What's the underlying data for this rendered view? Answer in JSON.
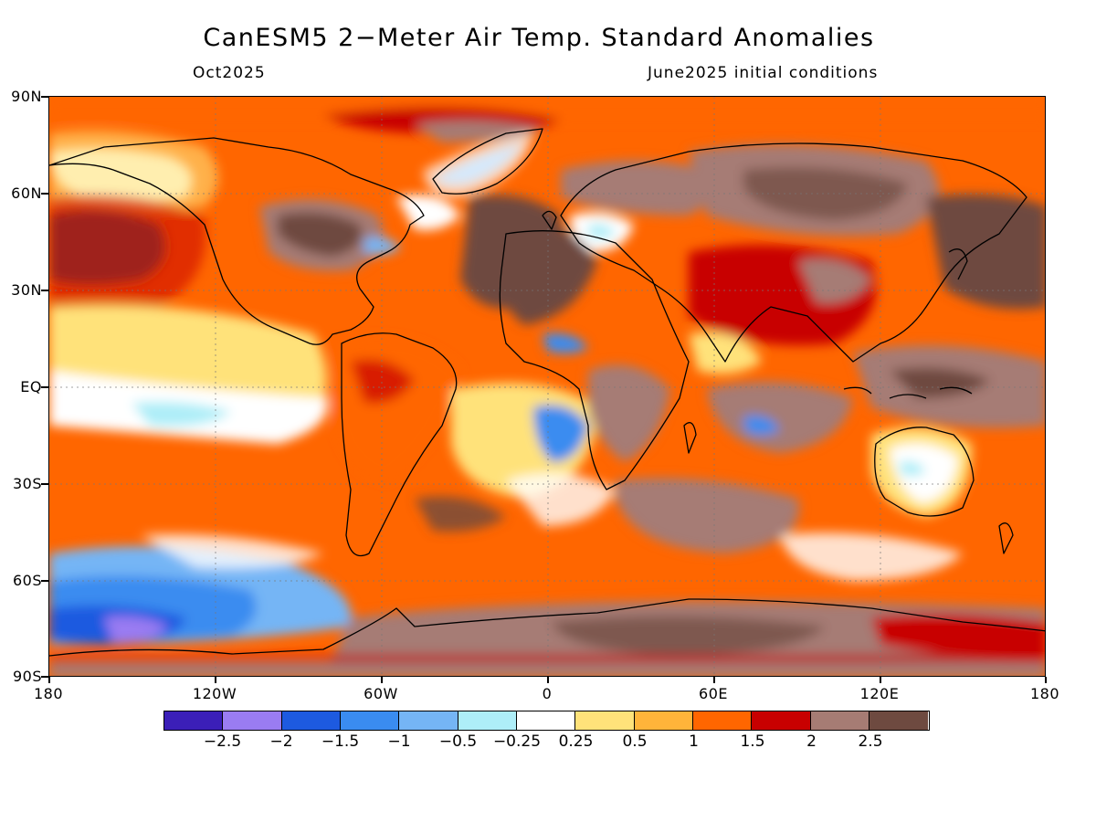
{
  "header": {
    "title": "CanESM5 2−Meter Air Temp. Standard Anomalies",
    "forecast_month": "Oct2025",
    "initial_conditions": "June2025 initial conditions"
  },
  "map": {
    "lat_labels": [
      "90N",
      "60N",
      "30N",
      "EQ",
      "30S",
      "60S",
      "90S"
    ],
    "lon_labels": [
      "180",
      "120W",
      "60W",
      "0",
      "60E",
      "120E",
      "180"
    ]
  },
  "legend": {
    "colors": [
      "#3b1fb8",
      "#9a7cf2",
      "#1d5ae0",
      "#3a8cf0",
      "#75b5f5",
      "#aeeef8",
      "#ffffff",
      "#ffe27a",
      "#ffb43a",
      "#ff6600",
      "#c80000",
      "#a67c74",
      "#6e4a40"
    ],
    "labels": [
      "−2.5",
      "−2",
      "−1.5",
      "−1",
      "−0.5",
      "−0.25",
      "0.25",
      "0.5",
      "1",
      "1.5",
      "2",
      "2.5"
    ]
  }
}
